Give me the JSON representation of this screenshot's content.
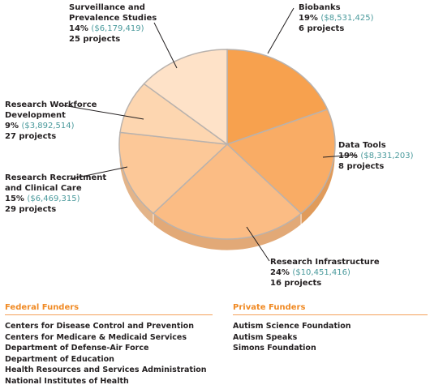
{
  "chart_data": {
    "type": "pie",
    "slices": [
      {
        "name": "Biobanks",
        "percent": "19%",
        "amount": "$8,531,425",
        "projects": "6 projects",
        "value": 19,
        "color": "#f7a14e"
      },
      {
        "name": "Data Tools",
        "percent": "19%",
        "amount": "$8,331,203",
        "projects": "8 projects",
        "value": 19,
        "color": "#f9ac65"
      },
      {
        "name": "Research Infrastructure",
        "percent": "24%",
        "amount": "$10,451,416",
        "projects": "16 projects",
        "value": 24,
        "color": "#fbbc84"
      },
      {
        "name": "Research Recruitment and Clinical Care",
        "percent": "15%",
        "amount": "$6,469,315",
        "projects": "29 projects",
        "value": 15,
        "color": "#fcc898"
      },
      {
        "name": "Research Workforce Development",
        "percent": "9%",
        "amount": "$3,892,514",
        "projects": "27 projects",
        "value": 9,
        "color": "#fdd6b0"
      },
      {
        "name": "Surveillance and Prevalence Studies",
        "percent": "14%",
        "amount": "$6,179,419",
        "projects": "25 projects",
        "value": 14,
        "color": "#fee2c8"
      }
    ],
    "labels": {
      "biobanks": {
        "title": "Biobanks",
        "pct": "19%",
        "amt": "$8,531,425",
        "proj": "6 projects"
      },
      "datatools": {
        "title": "Data Tools",
        "pct": "19%",
        "amt": "$8,331,203",
        "proj": "8 projects"
      },
      "infra": {
        "title": "Research Infrastructure",
        "pct": "24%",
        "amt": "$10,451,416",
        "proj": "16 projects"
      },
      "recruit": {
        "title1": "Research Recruitment",
        "title2": "and Clinical Care",
        "pct": "15%",
        "amt": "$6,469,315",
        "proj": "29 projects"
      },
      "workforce": {
        "title1": "Research Workforce",
        "title2": "Development",
        "pct": "9%",
        "amt": "$3,892,514",
        "proj": "27 projects"
      },
      "surveillance": {
        "title1": "Surveillance and",
        "title2": "Prevalence Studies",
        "pct": "14%",
        "amt": "$6,179,419",
        "proj": "25 projects"
      }
    }
  },
  "funders": {
    "federal_title": "Federal Funders",
    "federal": [
      "Centers for Disease Control and Prevention",
      "Centers for Medicare & Medicaid Services",
      "Department of Defense-Air Force",
      "Department of Education",
      "Health Resources and Services Administration",
      "National Institutes of Health"
    ],
    "private_title": "Private Funders",
    "private": [
      "Autism Science Foundation",
      "Autism Speaks",
      "Simons Foundation"
    ]
  }
}
